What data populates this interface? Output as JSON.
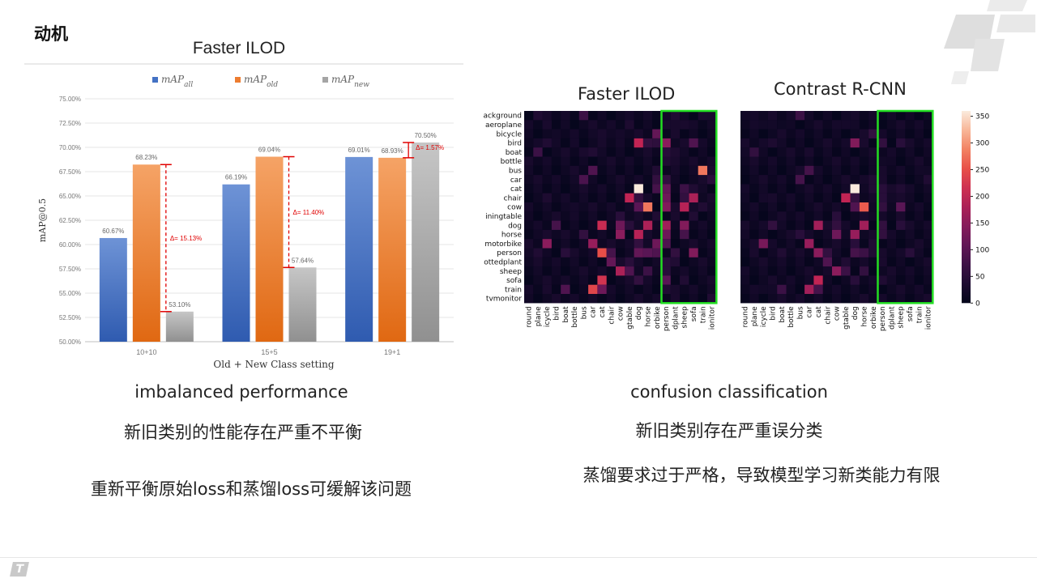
{
  "slide": {
    "title": "动机",
    "left_caption_en": "imbalanced performance",
    "left_caption_zh": "新旧类别的性能存在严重不平衡",
    "left_note": "重新平衡原始loss和蒸馏loss可缓解该问题",
    "right_caption_en": "confusion classification",
    "right_caption_zh": "新旧类别存在严重误分类",
    "right_note": "蒸馏要求过于严格，导致模型学习新类能力有限"
  },
  "colors": {
    "all": "#4472c4",
    "old": "#ed7d31",
    "new": "#a5a5a5",
    "delta": "#e00000",
    "highlight": "#22dd22"
  },
  "chart_data": [
    {
      "type": "bar",
      "title": "Faster ILOD",
      "xlabel": "Old + New Class setting",
      "ylabel": "mAP@0.5",
      "categories": [
        "10+10",
        "15+5",
        "19+1"
      ],
      "series": [
        {
          "name": "mAP_all",
          "color": "#4472c4",
          "values": [
            60.67,
            66.19,
            69.01
          ],
          "labels": [
            "60.67%",
            "66.19%",
            "69.01%"
          ]
        },
        {
          "name": "mAP_old",
          "color": "#ed7d31",
          "values": [
            68.23,
            69.04,
            68.93
          ],
          "labels": [
            "68.23%",
            "69.04%",
            "68.93%"
          ]
        },
        {
          "name": "mAP_new",
          "color": "#a5a5a5",
          "values": [
            53.1,
            57.64,
            70.5
          ],
          "labels": [
            "53.10%",
            "57.64%",
            "70.50%"
          ]
        }
      ],
      "ylim": [
        50,
        75
      ],
      "yticks": [
        50,
        52.5,
        55,
        57.5,
        60,
        62.5,
        65,
        67.5,
        70,
        72.5,
        75
      ],
      "ytick_labels": [
        "50.00%",
        "52.50%",
        "55.00%",
        "57.50%",
        "60.00%",
        "62.50%",
        "65.00%",
        "67.50%",
        "70.00%",
        "72.50%",
        "75.00%"
      ],
      "annotations": [
        "Δ= 15.13%",
        "Δ= 11.40%",
        "Δ= 1.57%"
      ],
      "legend": "top",
      "grid": true
    },
    {
      "type": "heatmap",
      "titles": [
        "Faster ILOD",
        "Contrast R-CNN"
      ],
      "row_labels": [
        "ackground",
        "aeroplane",
        "bicycle",
        "bird",
        "boat",
        "bottle",
        "bus",
        "car",
        "cat",
        "chair",
        "cow",
        "iningtable",
        "dog",
        "horse",
        "motorbike",
        "person",
        "ottedplant",
        "sheep",
        "sofa",
        "train",
        "tvmonitor"
      ],
      "col_labels": [
        "round",
        "plane",
        "icycle",
        "bird",
        "boat",
        "bottle",
        "bus",
        "car",
        "cat",
        "chair",
        "cow",
        "gtable",
        "dog",
        "horse",
        "orbike",
        "person",
        "dplant",
        "sheep",
        "sofa",
        "train",
        "ionitor"
      ],
      "colorbar_ticks": [
        0,
        50,
        100,
        150,
        200,
        250,
        300,
        350
      ],
      "vmin": 0,
      "vmax": 360,
      "highlight_columns": "new classes (last 6)",
      "cells": [
        [
          [
            [
              0,
              1,
              40
            ],
            [
              0,
              6,
              70
            ],
            [
              0,
              11,
              25
            ],
            [
              0,
              16,
              40
            ],
            [
              0,
              19,
              30
            ]
          ],
          [
            [
              1,
              2,
              30
            ],
            [
              1,
              4,
              20
            ],
            [
              1,
              11,
              35
            ],
            [
              1,
              15,
              30
            ],
            [
              1,
              17,
              30
            ]
          ],
          [
            [
              2,
              3,
              20
            ],
            [
              2,
              8,
              30
            ],
            [
              2,
              10,
              25
            ],
            [
              2,
              14,
              110
            ],
            [
              2,
              16,
              30
            ]
          ],
          [
            [
              3,
              2,
              40
            ],
            [
              3,
              5,
              25
            ],
            [
              3,
              12,
              200
            ],
            [
              3,
              13,
              60
            ],
            [
              3,
              15,
              150
            ],
            [
              3,
              18,
              90
            ],
            [
              3,
              14,
              55
            ]
          ],
          [
            [
              4,
              1,
              70
            ],
            [
              4,
              6,
              30
            ],
            [
              4,
              7,
              40
            ],
            [
              4,
              15,
              50
            ],
            [
              4,
              16,
              35
            ]
          ],
          [
            [
              5,
              15,
              40
            ],
            [
              5,
              16,
              30
            ]
          ],
          [
            [
              6,
              7,
              90
            ],
            [
              6,
              14,
              40
            ],
            [
              6,
              19,
              280
            ],
            [
              6,
              20,
              30
            ]
          ],
          [
            [
              7,
              6,
              85
            ],
            [
              7,
              14,
              60
            ],
            [
              7,
              15,
              60
            ],
            [
              7,
              20,
              50
            ]
          ],
          [
            [
              8,
              12,
              360
            ],
            [
              8,
              14,
              80
            ],
            [
              8,
              15,
              110
            ],
            [
              8,
              17,
              70
            ],
            [
              8,
              18,
              40
            ]
          ],
          [
            [
              9,
              2,
              35
            ],
            [
              9,
              11,
              200
            ],
            [
              9,
              12,
              60
            ],
            [
              9,
              15,
              120
            ],
            [
              9,
              18,
              180
            ],
            [
              9,
              17,
              60
            ]
          ],
          [
            [
              10,
              5,
              25
            ],
            [
              10,
              12,
              100
            ],
            [
              10,
              13,
              280
            ],
            [
              10,
              15,
              140
            ],
            [
              10,
              17,
              190
            ],
            [
              10,
              19,
              40
            ]
          ],
          [
            [
              11,
              10,
              50
            ],
            [
              11,
              14,
              40
            ],
            [
              11,
              16,
              30
            ],
            [
              11,
              18,
              40
            ]
          ],
          [
            [
              12,
              3,
              80
            ],
            [
              12,
              8,
              210
            ],
            [
              12,
              10,
              120
            ],
            [
              12,
              11,
              50
            ],
            [
              12,
              13,
              180
            ],
            [
              12,
              15,
              170
            ],
            [
              12,
              17,
              140
            ]
          ],
          [
            [
              13,
              2,
              30
            ],
            [
              13,
              6,
              60
            ],
            [
              13,
              10,
              150
            ],
            [
              13,
              12,
              190
            ],
            [
              13,
              15,
              120
            ],
            [
              13,
              17,
              80
            ]
          ],
          [
            [
              14,
              2,
              150
            ],
            [
              14,
              7,
              160
            ],
            [
              14,
              12,
              60
            ],
            [
              14,
              15,
              90
            ],
            [
              14,
              14,
              120
            ]
          ],
          [
            [
              15,
              1,
              40
            ],
            [
              15,
              4,
              50
            ],
            [
              15,
              8,
              250
            ],
            [
              15,
              9,
              80
            ],
            [
              15,
              12,
              110
            ],
            [
              15,
              13,
              100
            ],
            [
              15,
              14,
              90
            ],
            [
              15,
              16,
              60
            ],
            [
              15,
              18,
              140
            ]
          ],
          [
            [
              16,
              9,
              110
            ],
            [
              16,
              11,
              50
            ],
            [
              16,
              15,
              50
            ],
            [
              16,
              16,
              40
            ]
          ],
          [
            [
              17,
              10,
              180
            ],
            [
              17,
              11,
              90
            ],
            [
              17,
              13,
              70
            ],
            [
              17,
              15,
              50
            ]
          ],
          [
            [
              18,
              8,
              220
            ],
            [
              18,
              12,
              60
            ],
            [
              18,
              15,
              100
            ],
            [
              18,
              17,
              40
            ]
          ],
          [
            [
              19,
              2,
              30
            ],
            [
              19,
              4,
              90
            ],
            [
              19,
              7,
              240
            ],
            [
              19,
              8,
              120
            ],
            [
              19,
              15,
              40
            ]
          ],
          [
            [
              20,
              16,
              30
            ],
            [
              20,
              20,
              40
            ]
          ]
        ],
        [
          [
            [
              0,
              1,
              25
            ],
            [
              0,
              6,
              70
            ],
            [
              0,
              11,
              20
            ]
          ],
          [
            [
              1,
              2,
              20
            ],
            [
              1,
              4,
              15
            ],
            [
              1,
              11,
              25
            ]
          ],
          [
            [
              2,
              3,
              15
            ],
            [
              2,
              8,
              20
            ],
            [
              2,
              14,
              60
            ]
          ],
          [
            [
              3,
              3,
              35
            ],
            [
              3,
              12,
              140
            ],
            [
              3,
              13,
              30
            ],
            [
              3,
              15,
              60
            ],
            [
              3,
              17,
              50
            ]
          ],
          [
            [
              4,
              1,
              60
            ],
            [
              4,
              7,
              30
            ]
          ],
          [
            [
              5,
              15,
              20
            ]
          ],
          [
            [
              6,
              7,
              80
            ],
            [
              6,
              14,
              20
            ],
            [
              6,
              20,
              20
            ]
          ],
          [
            [
              7,
              6,
              80
            ],
            [
              7,
              14,
              40
            ],
            [
              7,
              15,
              30
            ],
            [
              7,
              20,
              40
            ]
          ],
          [
            [
              8,
              12,
              360
            ],
            [
              8,
              14,
              40
            ],
            [
              8,
              15,
              50
            ],
            [
              8,
              17,
              40
            ]
          ],
          [
            [
              9,
              2,
              25
            ],
            [
              9,
              11,
              200
            ],
            [
              9,
              12,
              60
            ],
            [
              9,
              15,
              50
            ],
            [
              9,
              17,
              30
            ]
          ],
          [
            [
              10,
              12,
              90
            ],
            [
              10,
              13,
              260
            ],
            [
              10,
              15,
              60
            ],
            [
              10,
              17,
              100
            ]
          ],
          [
            [
              11,
              10,
              50
            ],
            [
              11,
              14,
              20
            ],
            [
              11,
              17,
              30
            ]
          ],
          [
            [
              12,
              3,
              60
            ],
            [
              12,
              8,
              170
            ],
            [
              12,
              10,
              60
            ],
            [
              12,
              13,
              170
            ],
            [
              12,
              15,
              60
            ],
            [
              12,
              17,
              50
            ]
          ],
          [
            [
              13,
              2,
              20
            ],
            [
              13,
              6,
              50
            ],
            [
              13,
              10,
              120
            ],
            [
              13,
              12,
              160
            ],
            [
              13,
              15,
              60
            ]
          ],
          [
            [
              14,
              2,
              130
            ],
            [
              14,
              7,
              160
            ],
            [
              14,
              12,
              50
            ],
            [
              14,
              14,
              40
            ]
          ],
          [
            [
              15,
              1,
              30
            ],
            [
              15,
              4,
              40
            ],
            [
              15,
              8,
              150
            ],
            [
              15,
              9,
              60
            ],
            [
              15,
              12,
              80
            ],
            [
              15,
              13,
              70
            ],
            [
              15,
              14,
              40
            ],
            [
              15,
              18,
              50
            ]
          ],
          [
            [
              16,
              9,
              90
            ],
            [
              16,
              11,
              40
            ],
            [
              16,
              15,
              30
            ]
          ],
          [
            [
              17,
              10,
              150
            ],
            [
              17,
              11,
              70
            ],
            [
              17,
              13,
              60
            ]
          ],
          [
            [
              18,
              8,
              200
            ],
            [
              18,
              12,
              50
            ],
            [
              18,
              15,
              40
            ]
          ],
          [
            [
              19,
              2,
              20
            ],
            [
              19,
              4,
              70
            ],
            [
              19,
              7,
              170
            ],
            [
              19,
              8,
              80
            ]
          ],
          [
            [
              20,
              20,
              30
            ]
          ]
        ]
      ]
    }
  ]
}
